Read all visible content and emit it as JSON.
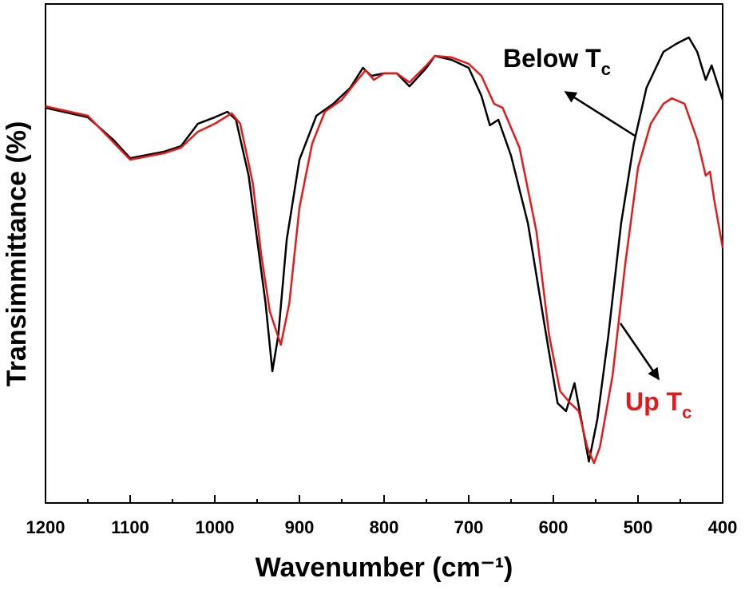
{
  "chart_data": {
    "type": "line",
    "x_label": "Wavenumber (cm⁻¹)",
    "y_label": "Transimmittance (%)",
    "xlim": [
      1200,
      400
    ],
    "xticks": [
      1200,
      1100,
      1000,
      900,
      800,
      700,
      600,
      500,
      400
    ],
    "xminorticks": [
      1150,
      1050,
      950,
      850,
      750,
      650,
      550,
      450
    ],
    "ylim": [
      0,
      100
    ],
    "annotations": [
      {
        "text": "Below T",
        "sub": "c",
        "color": "#000000"
      },
      {
        "text": "Up T",
        "sub": "c",
        "color": "#e31a1c"
      }
    ],
    "series": [
      {
        "color": "#000000",
        "x": [
          1200,
          1150,
          1120,
          1100,
          1060,
          1040,
          1020,
          1000,
          985,
          975,
          960,
          950,
          940,
          932,
          925,
          915,
          900,
          880,
          860,
          840,
          825,
          815,
          800,
          785,
          770,
          750,
          740,
          720,
          700,
          685,
          675,
          665,
          650,
          630,
          610,
          595,
          585,
          575,
          568,
          558,
          548,
          535,
          520,
          505,
          490,
          470,
          455,
          440,
          430,
          420,
          413,
          400
        ],
        "values": [
          79.2,
          77.3,
          72.8,
          69.1,
          70.4,
          71.5,
          76,
          77.3,
          78.4,
          76.8,
          65.6,
          52.8,
          40,
          26.4,
          33.6,
          52.8,
          68.8,
          77.6,
          80,
          83.2,
          87.2,
          85.6,
          86.1,
          86.1,
          83.5,
          87.2,
          89.6,
          88.8,
          87.2,
          81.6,
          75.7,
          76.8,
          69.6,
          56,
          35.2,
          20,
          18.4,
          24,
          17.6,
          8.3,
          16.8,
          33.6,
          56,
          72,
          83.2,
          90.4,
          92,
          93.3,
          90.4,
          84.8,
          87.7,
          80.8
        ]
      },
      {
        "color": "#e31a1c",
        "x": [
          1200,
          1150,
          1100,
          1060,
          1040,
          1020,
          1000,
          980,
          970,
          955,
          945,
          935,
          922,
          912,
          900,
          885,
          870,
          850,
          835,
          822,
          812,
          800,
          785,
          770,
          750,
          740,
          720,
          700,
          685,
          670,
          660,
          640,
          620,
          605,
          592,
          580,
          570,
          560,
          552,
          545,
          530,
          515,
          500,
          485,
          470,
          460,
          445,
          430,
          420,
          415,
          410,
          400
        ],
        "values": [
          79.5,
          77.6,
          68.8,
          70.1,
          71.2,
          74.4,
          76,
          78.1,
          76,
          64,
          49.6,
          38.4,
          31.7,
          40,
          59.2,
          72,
          78.4,
          80.8,
          84,
          86.7,
          84.8,
          86.1,
          86.1,
          84.3,
          87.7,
          89.6,
          89.3,
          88,
          85.6,
          80,
          79.2,
          71.2,
          54.4,
          33.6,
          22.4,
          20,
          18.4,
          11.2,
          8,
          11.2,
          25.6,
          48,
          67.2,
          76,
          80,
          81.1,
          80,
          72.8,
          65.6,
          66.4,
          60.8,
          51.2
        ]
      }
    ]
  }
}
